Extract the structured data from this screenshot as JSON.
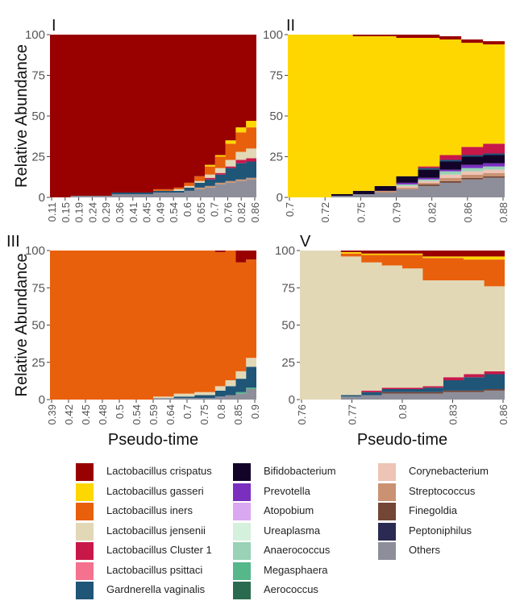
{
  "species": [
    {
      "name": "Lactobacillus crispatus",
      "color": "#990000"
    },
    {
      "name": "Lactobacillus gasseri",
      "color": "#FFD700"
    },
    {
      "name": "Lactobacillus iners",
      "color": "#E8600C"
    },
    {
      "name": "Lactobacillus jensenii",
      "color": "#E2D8B6"
    },
    {
      "name": "Lactobacillus Cluster 1",
      "color": "#C8184A"
    },
    {
      "name": "Lactobacillus psittaci",
      "color": "#F4728E"
    },
    {
      "name": "Gardnerella vaginalis",
      "color": "#1F5577"
    },
    {
      "name": "Bifidobacterium",
      "color": "#120328"
    },
    {
      "name": "Prevotella",
      "color": "#7B2FBF"
    },
    {
      "name": "Atopobium",
      "color": "#D9A8F0"
    },
    {
      "name": "Ureaplasma",
      "color": "#D6F0DE"
    },
    {
      "name": "Anaerococcus",
      "color": "#99D2B6"
    },
    {
      "name": "Megasphaera",
      "color": "#55B78A"
    },
    {
      "name": "Aerococcus",
      "color": "#2A6B50"
    },
    {
      "name": "Corynebacterium",
      "color": "#EDC4B6"
    },
    {
      "name": "Streptococcus",
      "color": "#CA9272"
    },
    {
      "name": "Finegoldia",
      "color": "#734636"
    },
    {
      "name": "Peptoniphilus",
      "color": "#2A2A52"
    },
    {
      "name": "Others",
      "color": "#8E8E9A"
    }
  ],
  "chart_data": [
    {
      "type": "area",
      "panel_label": "I",
      "ylabel": "Relative Abundance",
      "xlabel": "",
      "ylim": [
        0,
        100
      ],
      "yticks": [
        0,
        25,
        50,
        75,
        100
      ],
      "xticks": [
        "0.11",
        "0.15",
        "0.19",
        "0.24",
        "0.29",
        "0.36",
        "0.41",
        "0.45",
        "0.49",
        "0.54",
        "0.6",
        "0.65",
        "0.7",
        "0.76",
        "0.82",
        "0.86"
      ],
      "x_pos": [
        0,
        0.1,
        0.2,
        0.3,
        0.4,
        0.5,
        0.6,
        0.65,
        0.7,
        0.75,
        0.8,
        0.85,
        0.9,
        0.95,
        1
      ],
      "series": [
        {
          "name": "Others",
          "values": [
            0,
            1,
            1,
            2,
            2,
            3,
            3,
            4,
            5,
            6,
            8,
            9,
            10,
            11,
            14
          ]
        },
        {
          "name": "Streptococcus",
          "values": [
            0,
            0,
            0,
            0,
            0,
            0,
            0,
            0,
            1,
            1,
            1,
            1,
            1,
            1,
            1
          ]
        },
        {
          "name": "Gardnerella vaginalis",
          "values": [
            0,
            0,
            0,
            1,
            1,
            1,
            1,
            2,
            3,
            4,
            5,
            8,
            10,
            10,
            12
          ]
        },
        {
          "name": "Lactobacillus Cluster 1",
          "values": [
            0,
            0,
            0,
            0,
            0,
            0,
            0,
            0,
            0,
            1,
            1,
            1,
            2,
            2,
            3
          ]
        },
        {
          "name": "Lactobacillus jensenii",
          "values": [
            0,
            0,
            0,
            0,
            0,
            0,
            1,
            1,
            1,
            2,
            3,
            4,
            5,
            6,
            8
          ]
        },
        {
          "name": "Lactobacillus iners",
          "values": [
            0,
            0,
            0,
            0,
            0,
            1,
            1,
            2,
            3,
            5,
            7,
            10,
            12,
            13,
            8
          ]
        },
        {
          "name": "Lactobacillus gasseri",
          "values": [
            0,
            0,
            0,
            0,
            0,
            0,
            0,
            0,
            0,
            1,
            1,
            2,
            3,
            4,
            7
          ]
        },
        {
          "name": "Lactobacillus crispatus",
          "values": [
            100,
            99,
            99,
            97,
            97,
            95,
            94,
            91,
            87,
            80,
            74,
            65,
            57,
            53,
            47
          ]
        }
      ]
    },
    {
      "type": "area",
      "panel_label": "II",
      "ylabel": "",
      "xlabel": "",
      "ylim": [
        0,
        100
      ],
      "yticks": [
        0,
        25,
        50,
        75,
        100
      ],
      "xticks": [
        "0.7",
        "0.72",
        "0.75",
        "0.79",
        "0.82",
        "0.86",
        "0.88"
      ],
      "x_pos": [
        0,
        0.1,
        0.2,
        0.3,
        0.4,
        0.5,
        0.6,
        0.7,
        0.8,
        0.9,
        1
      ],
      "series": [
        {
          "name": "Others",
          "values": [
            0,
            0,
            1,
            2,
            3,
            5,
            7,
            9,
            11,
            12,
            14
          ]
        },
        {
          "name": "Finegoldia",
          "values": [
            0,
            0,
            0,
            0,
            0,
            0,
            1,
            1,
            1,
            1,
            1
          ]
        },
        {
          "name": "Streptococcus",
          "values": [
            0,
            0,
            0,
            0,
            1,
            1,
            1,
            2,
            2,
            2,
            2
          ]
        },
        {
          "name": "Corynebacterium",
          "values": [
            0,
            0,
            0,
            0,
            0,
            1,
            1,
            2,
            2,
            2,
            2
          ]
        },
        {
          "name": "Anaerococcus",
          "values": [
            0,
            0,
            0,
            0,
            0,
            1,
            1,
            2,
            2,
            2,
            2
          ]
        },
        {
          "name": "Prevotella",
          "values": [
            0,
            0,
            0,
            0,
            0,
            1,
            1,
            1,
            2,
            2,
            2
          ]
        },
        {
          "name": "Bifidobacterium",
          "values": [
            0,
            0,
            1,
            2,
            3,
            4,
            5,
            5,
            5,
            5,
            5
          ]
        },
        {
          "name": "Gardnerella vaginalis",
          "values": [
            0,
            0,
            0,
            0,
            0,
            0,
            1,
            1,
            1,
            1,
            1
          ]
        },
        {
          "name": "Lactobacillus Cluster 1",
          "values": [
            0,
            0,
            0,
            0,
            0,
            0,
            1,
            3,
            5,
            6,
            7
          ]
        },
        {
          "name": "Lactobacillus gasseri",
          "values": [
            100,
            100,
            98,
            95,
            92,
            85,
            79,
            71,
            64,
            61,
            56
          ]
        },
        {
          "name": "Lactobacillus crispatus",
          "values": [
            0,
            0,
            0,
            1,
            1,
            2,
            2,
            2,
            2,
            2,
            2
          ]
        }
      ]
    },
    {
      "type": "area",
      "panel_label": "III",
      "ylabel": "Relative Abundance",
      "xlabel": "Pseudo-time",
      "ylim": [
        0,
        100
      ],
      "yticks": [
        0,
        25,
        50,
        75,
        100
      ],
      "xticks": [
        "0.39",
        "0.42",
        "0.45",
        "0.48",
        "0.5",
        "0.54",
        "0.59",
        "0.64",
        "0.7",
        "0.75",
        "0.8",
        "0.85",
        "0.9"
      ],
      "x_pos": [
        0,
        0.2,
        0.4,
        0.5,
        0.6,
        0.7,
        0.8,
        0.85,
        0.9,
        0.95,
        1
      ],
      "series": [
        {
          "name": "Others",
          "values": [
            0,
            0,
            0,
            1,
            1,
            1,
            2,
            3,
            4,
            7,
            12
          ]
        },
        {
          "name": "Megasphaera",
          "values": [
            0,
            0,
            0,
            0,
            0,
            0,
            0,
            0,
            1,
            1,
            2
          ]
        },
        {
          "name": "Gardnerella vaginalis",
          "values": [
            0,
            0,
            0,
            0,
            1,
            2,
            4,
            6,
            9,
            14,
            18
          ]
        },
        {
          "name": "Lactobacillus jensenii",
          "values": [
            0,
            0,
            0,
            1,
            2,
            2,
            3,
            4,
            5,
            6,
            4
          ]
        },
        {
          "name": "Lactobacillus iners",
          "values": [
            100,
            100,
            100,
            98,
            96,
            95,
            90,
            87,
            73,
            66,
            59
          ]
        },
        {
          "name": "Lactobacillus crispatus",
          "values": [
            0,
            0,
            0,
            0,
            0,
            0,
            1,
            0,
            8,
            6,
            5
          ]
        }
      ]
    },
    {
      "type": "area",
      "panel_label": "V",
      "ylabel": "",
      "xlabel": "Pseudo-time",
      "ylim": [
        0,
        100
      ],
      "yticks": [
        0,
        25,
        50,
        75,
        100
      ],
      "xticks": [
        "0.76",
        "0.77",
        "0.8",
        "0.83",
        "0.86"
      ],
      "x_pos": [
        0,
        0.1,
        0.2,
        0.3,
        0.4,
        0.5,
        0.6,
        0.7,
        0.8,
        0.9,
        1
      ],
      "series": [
        {
          "name": "Others",
          "values": [
            0,
            0,
            2,
            3,
            4,
            4,
            4,
            5,
            5,
            6,
            7
          ]
        },
        {
          "name": "Finegoldia",
          "values": [
            0,
            0,
            0,
            0,
            1,
            1,
            1,
            1,
            1,
            1,
            1
          ]
        },
        {
          "name": "Gardnerella vaginalis",
          "values": [
            0,
            0,
            1,
            2,
            2,
            2,
            3,
            7,
            9,
            10,
            10
          ]
        },
        {
          "name": "Lactobacillus Cluster 1",
          "values": [
            0,
            0,
            0,
            1,
            1,
            1,
            1,
            2,
            2,
            2,
            2
          ]
        },
        {
          "name": "Lactobacillus jensenii",
          "values": [
            100,
            100,
            93,
            86,
            82,
            80,
            71,
            65,
            63,
            57,
            54
          ]
        },
        {
          "name": "Lactobacillus iners",
          "values": [
            0,
            0,
            2,
            5,
            7,
            9,
            15,
            15,
            14,
            18,
            19
          ]
        },
        {
          "name": "Lactobacillus gasseri",
          "values": [
            0,
            0,
            1,
            1,
            1,
            1,
            1,
            1,
            2,
            2,
            2
          ]
        },
        {
          "name": "Lactobacillus crispatus",
          "values": [
            0,
            0,
            1,
            2,
            2,
            2,
            4,
            4,
            4,
            4,
            5
          ]
        }
      ]
    }
  ]
}
